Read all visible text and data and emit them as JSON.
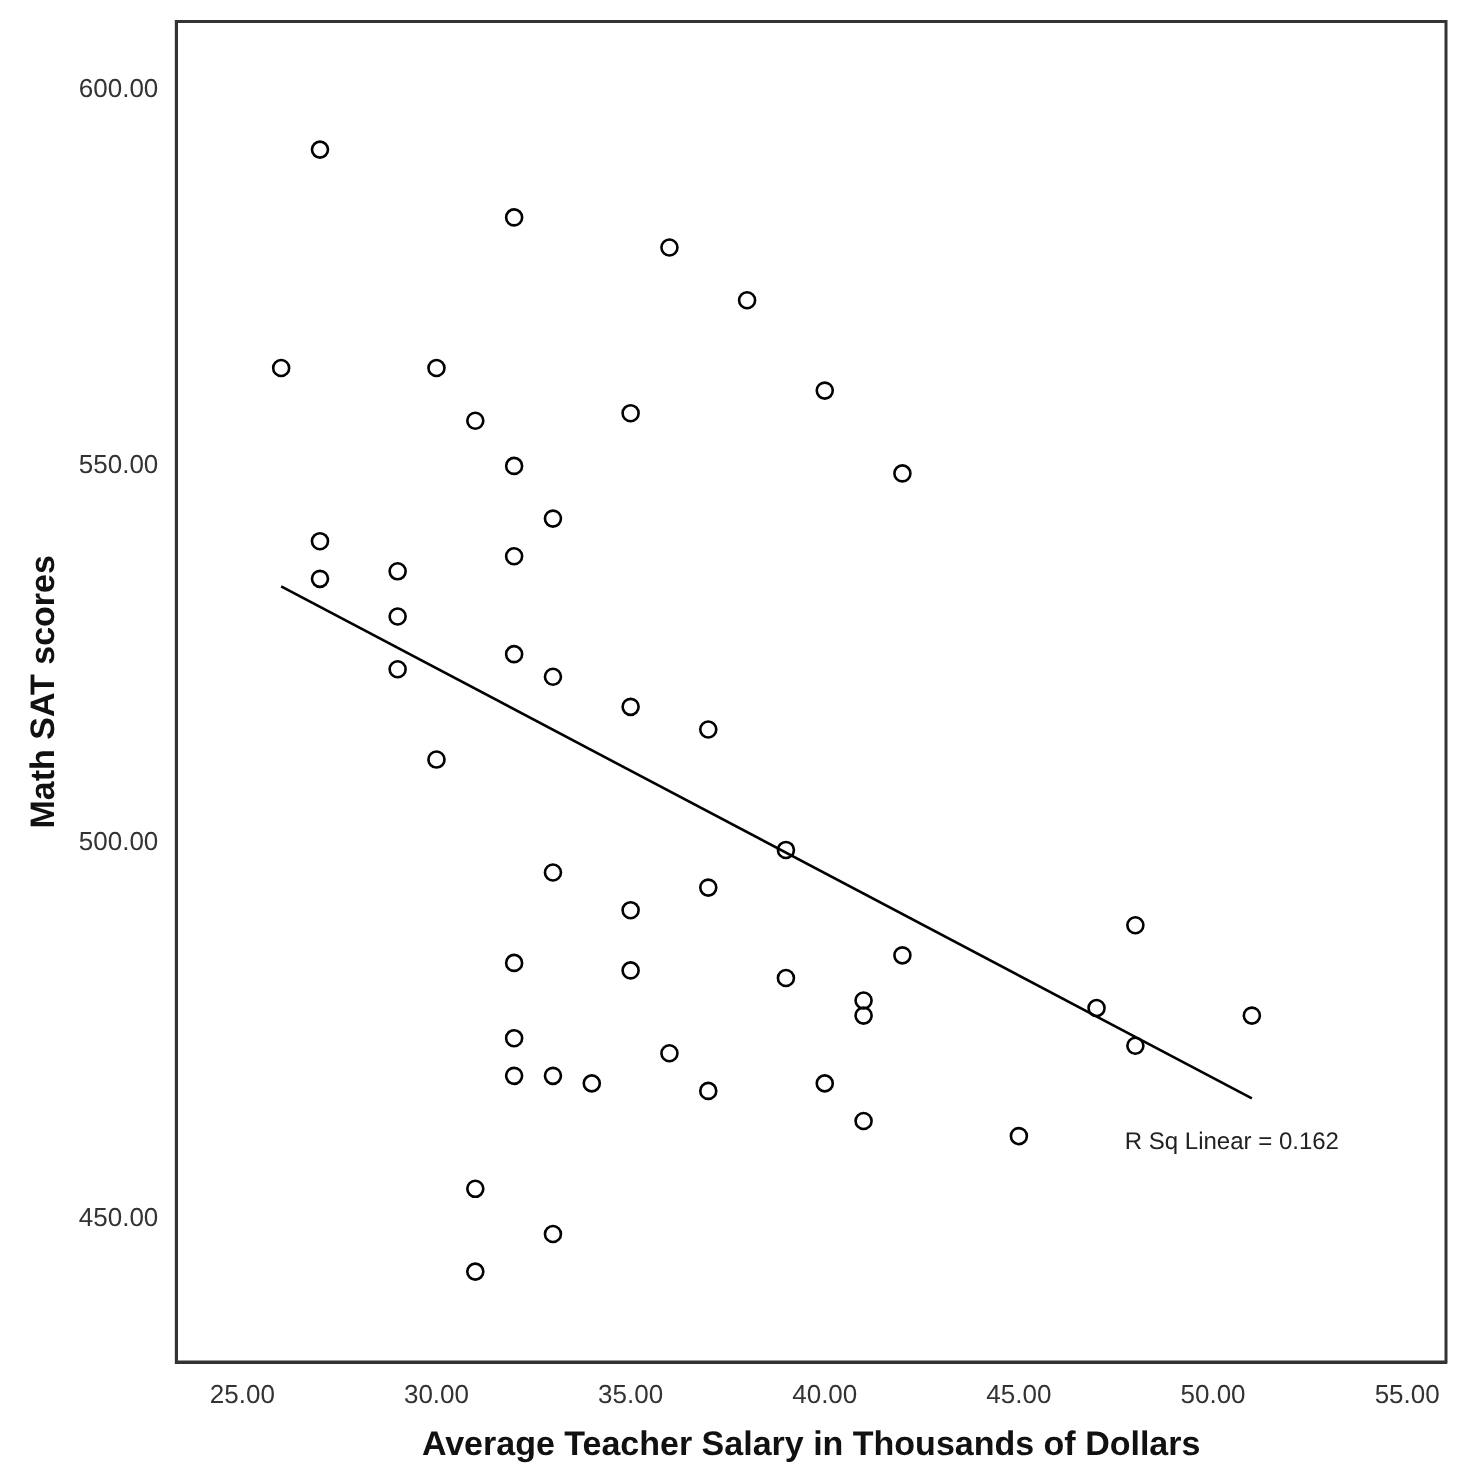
{
  "chart_data": {
    "type": "scatter",
    "xlabel": "Average Teacher Salary in Thousands of Dollars",
    "ylabel": "Math SAT scores",
    "grid": false,
    "legend": false,
    "xlim": [
      23.3,
      56
    ],
    "ylim": [
      431,
      609
    ],
    "xticks": [
      {
        "value": 25,
        "label": "25.00"
      },
      {
        "value": 30,
        "label": "30.00"
      },
      {
        "value": 35,
        "label": "35.00"
      },
      {
        "value": 40,
        "label": "40.00"
      },
      {
        "value": 45,
        "label": "45.00"
      },
      {
        "value": 50,
        "label": "50.00"
      },
      {
        "value": 55,
        "label": "55.00"
      }
    ],
    "yticks": [
      {
        "value": 450,
        "label": "450.00"
      },
      {
        "value": 500,
        "label": "500.00"
      },
      {
        "value": 550,
        "label": "550.00"
      },
      {
        "value": 600,
        "label": "600.00"
      }
    ],
    "annotations": [
      {
        "text": "R Sq Linear = 0.162",
        "x": 51,
        "y": 466
      }
    ],
    "series": [
      {
        "marker": "circle",
        "color": "#000000",
        "x": [
          27,
          32,
          36,
          38,
          26,
          30,
          31,
          35,
          32,
          33,
          27,
          27,
          29,
          29,
          32,
          29,
          32,
          33,
          35,
          37,
          40,
          42,
          30,
          33,
          37,
          35,
          32,
          35,
          32,
          36,
          32,
          33,
          34,
          37,
          31,
          33,
          31,
          39,
          48,
          42,
          39,
          41,
          41,
          47,
          51,
          48,
          40,
          41,
          45
        ],
        "values": [
          592,
          583,
          579,
          572,
          563,
          563,
          556,
          557,
          550,
          543,
          540,
          535,
          536,
          530,
          538,
          523,
          525,
          522,
          518,
          515,
          560,
          549,
          511,
          496,
          494,
          491,
          484,
          483,
          474,
          472,
          469,
          469,
          468,
          467,
          454,
          448,
          443,
          499,
          489,
          485,
          482,
          479,
          477,
          478,
          477,
          473,
          468,
          463,
          461
        ]
      },
      {
        "type": "line",
        "color": "#000000",
        "x": [
          26,
          51
        ],
        "values": [
          534,
          466
        ]
      }
    ]
  }
}
